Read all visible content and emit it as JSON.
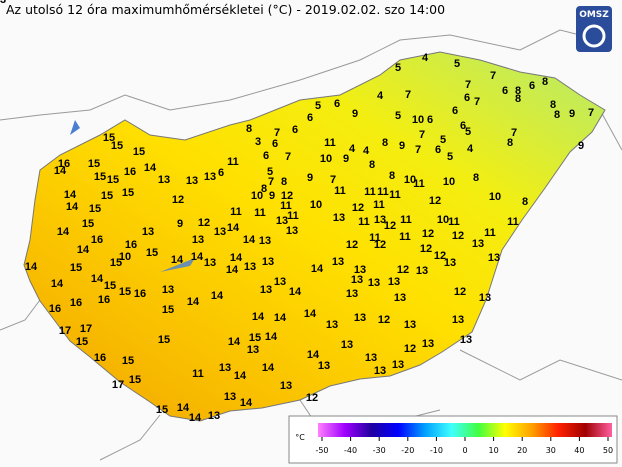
{
  "header": {
    "title": "Az utolsó 12 óra maximumhőmérsékletei (°C) - 2019.02.02. szo 14:00",
    "logo": "OMSZ"
  },
  "stations": [
    4,
    5,
    5,
    7,
    7,
    4,
    7,
    6,
    8,
    6,
    8,
    6,
    7,
    8,
    8,
    8,
    9,
    7,
    5,
    6,
    6,
    5,
    10,
    6,
    6,
    6,
    9,
    8,
    7,
    6,
    3,
    6,
    7,
    7,
    5,
    5,
    11,
    4,
    4,
    8,
    9,
    7,
    6,
    5,
    4,
    8,
    9,
    10,
    9,
    8,
    7,
    6,
    11,
    6,
    13,
    5,
    7,
    8,
    9,
    7,
    8,
    10,
    11,
    10,
    8,
    8,
    9,
    10,
    12,
    10,
    11,
    11,
    11,
    11,
    12,
    11,
    12,
    10,
    8,
    11,
    11,
    11,
    11,
    13,
    13,
    13,
    11,
    13,
    12,
    11,
    10,
    11,
    12,
    11,
    11,
    12,
    12,
    11,
    11,
    12,
    13,
    12,
    12,
    13,
    13,
    15,
    15,
    15,
    16,
    14,
    15,
    15,
    16,
    14,
    13,
    13,
    15,
    15,
    15,
    14,
    15,
    14,
    14,
    15,
    16,
    16,
    10,
    15,
    15,
    14,
    15,
    15,
    16,
    16,
    15,
    14,
    14,
    14,
    16,
    16,
    17,
    17,
    15,
    16,
    15,
    17,
    15,
    15,
    15,
    15,
    14,
    14,
    13,
    13,
    14,
    11,
    13,
    14,
    14,
    13,
    14,
    15,
    13,
    14,
    14,
    14,
    13,
    14,
    14,
    13,
    13,
    13,
    9,
    13,
    12,
    12,
    14,
    14,
    13,
    13,
    14,
    14,
    13,
    13,
    13,
    14,
    14,
    13,
    13,
    13,
    13,
    13,
    13,
    12,
    13,
    13,
    12,
    13,
    13,
    13,
    13,
    13,
    12,
    13,
    13,
    14,
    14,
    14,
    14,
    13,
    13,
    13,
    13,
    12,
    13,
    12,
    13
  ],
  "colorbar": {
    "unit": "°C",
    "ticks": [
      -50,
      -40,
      -30,
      -20,
      -10,
      0,
      10,
      20,
      30,
      40,
      50
    ],
    "colors": [
      "#ff80ff",
      "#a000ff",
      "#2000a0",
      "#0000ff",
      "#00a0ff",
      "#40ffff",
      "#40ff40",
      "#ffff00",
      "#ffa000",
      "#ff2000",
      "#a00000",
      "#ff60a0"
    ]
  }
}
